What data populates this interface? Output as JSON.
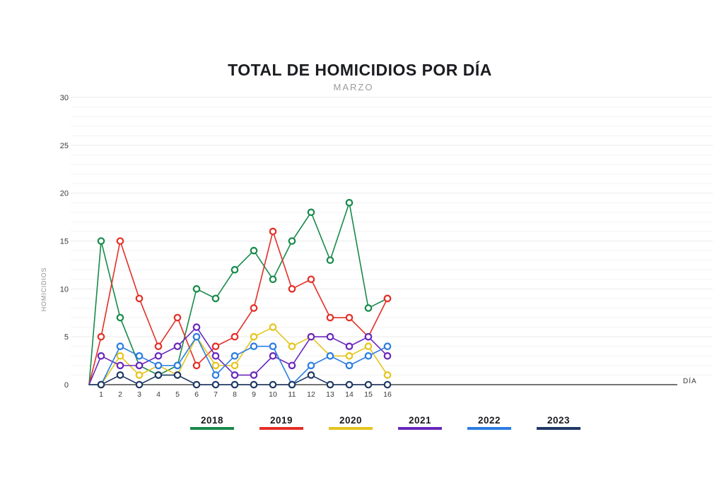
{
  "title": "TOTAL DE HOMICIDIOS POR DÍA",
  "subtitle": "MARZO",
  "chart_data": {
    "type": "line",
    "title": "TOTAL DE HOMICIDIOS POR DÍA",
    "subtitle": "MARZO",
    "xlabel": "DÍA",
    "ylabel": "HOMICIDIOS",
    "x": [
      1,
      2,
      3,
      4,
      5,
      6,
      7,
      8,
      9,
      10,
      11,
      12,
      13,
      14,
      15,
      16
    ],
    "ylim": [
      0,
      30
    ],
    "yticks": [
      0,
      5,
      10,
      15,
      20,
      25,
      30
    ],
    "grid": "horizontal, 1 gridline per unit, very light gray",
    "legend_position": "bottom",
    "lines_start_at_axis_origin_zero": true,
    "marker": "open circle, white fill, colored ring",
    "series": [
      {
        "name": "2018",
        "color": "#178a4a",
        "values": [
          15,
          7,
          2,
          1,
          2,
          10,
          9,
          12,
          14,
          11,
          15,
          18,
          13,
          19,
          8,
          9
        ]
      },
      {
        "name": "2019",
        "color": "#e52e26",
        "values": [
          5,
          15,
          9,
          4,
          7,
          2,
          4,
          5,
          8,
          16,
          10,
          11,
          7,
          7,
          5,
          9
        ]
      },
      {
        "name": "2020",
        "color": "#e5c41d",
        "values": [
          0,
          3,
          1,
          2,
          1,
          5,
          2,
          2,
          5,
          6,
          4,
          5,
          3,
          3,
          4,
          1
        ]
      },
      {
        "name": "2021",
        "color": "#6927bd",
        "values": [
          3,
          2,
          2,
          3,
          4,
          6,
          3,
          1,
          1,
          3,
          2,
          5,
          5,
          4,
          5,
          3
        ]
      },
      {
        "name": "2022",
        "color": "#2a7de2",
        "values": [
          0,
          4,
          3,
          2,
          2,
          5,
          1,
          3,
          4,
          4,
          0,
          2,
          3,
          2,
          3,
          4
        ]
      },
      {
        "name": "2023",
        "color": "#1f3864",
        "values": [
          0,
          1,
          0,
          1,
          1,
          0,
          0,
          0,
          0,
          0,
          0,
          1,
          0,
          0,
          0,
          0
        ]
      }
    ]
  },
  "colors": {
    "axis": "#454545",
    "tick_text": "#3a3a3a",
    "grid_minor": "#f2f2f2",
    "grid_major": "#eaeaea",
    "background": "#ffffff"
  }
}
